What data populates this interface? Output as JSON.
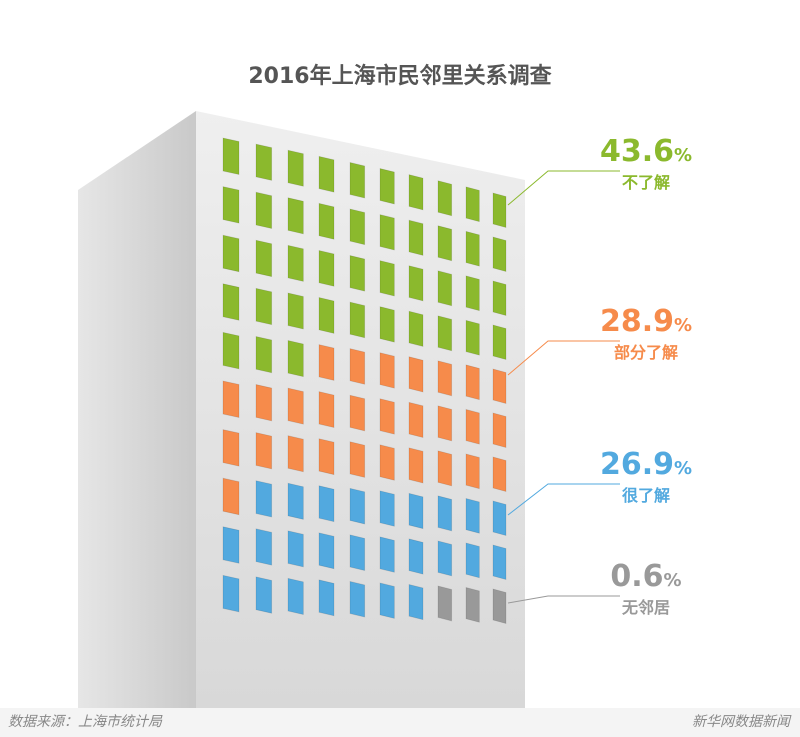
{
  "chart_data": {
    "type": "waffle",
    "title": "2016年上海市民邻里关系调查",
    "series": [
      {
        "name": "不了解",
        "value": 43.6,
        "unit": "%",
        "color": "#8bb92d"
      },
      {
        "name": "部分了解",
        "value": 28.9,
        "unit": "%",
        "color": "#f68b4b"
      },
      {
        "name": "很了解",
        "value": 26.9,
        "unit": "%",
        "color": "#52a9df"
      },
      {
        "name": "无邻居",
        "value": 0.6,
        "unit": "%",
        "color": "#999999"
      }
    ],
    "grid": {
      "rows": 10,
      "cols": 10
    }
  },
  "footer": {
    "source": "数据来源：上海市统计局",
    "brand": "新华网数据新闻"
  }
}
